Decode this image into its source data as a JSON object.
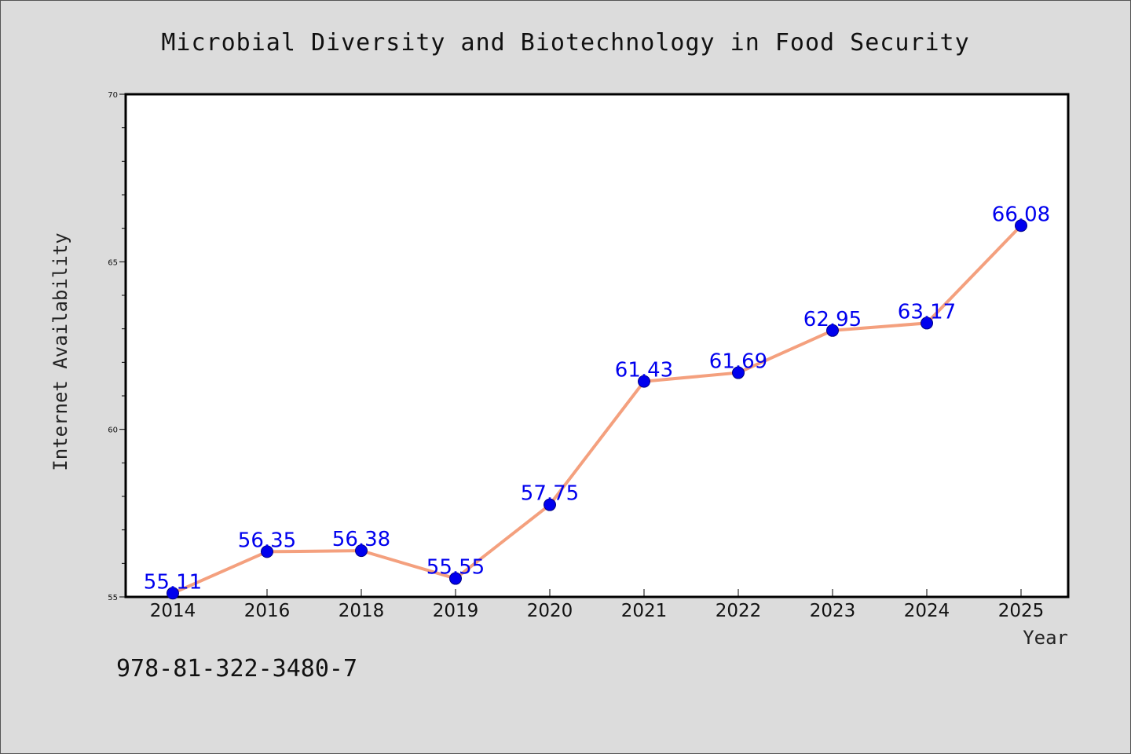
{
  "isbn": "978-81-322-3480-7",
  "chart_data": {
    "type": "line",
    "title": "Microbial Diversity and Biotechnology in Food Security",
    "xlabel": "Year",
    "ylabel": "Internet Availability",
    "categories": [
      "2014",
      "2016",
      "2018",
      "2019",
      "2020",
      "2021",
      "2022",
      "2023",
      "2024",
      "2025"
    ],
    "series": [
      {
        "values": [
          55.11,
          56.35,
          56.38,
          55.55,
          57.75,
          61.43,
          61.69,
          62.95,
          63.17,
          66.08
        ],
        "labels": [
          "55.11",
          "56.35",
          "56.38",
          "55.55",
          "57.75",
          "61.43",
          "61.69",
          "62.95",
          "63.17",
          "66.08"
        ],
        "line_color": "#f4a07e",
        "marker_color": "#0000ee",
        "label_color": "#0000ee"
      }
    ],
    "ylim": [
      55,
      70
    ],
    "y_ticks": [
      "55",
      "60",
      "65",
      "70"
    ],
    "y_minor_step": 1,
    "grid": false,
    "legend": "none",
    "background_color": "#dcdcdc",
    "plot_background_color": "#ffffff"
  }
}
